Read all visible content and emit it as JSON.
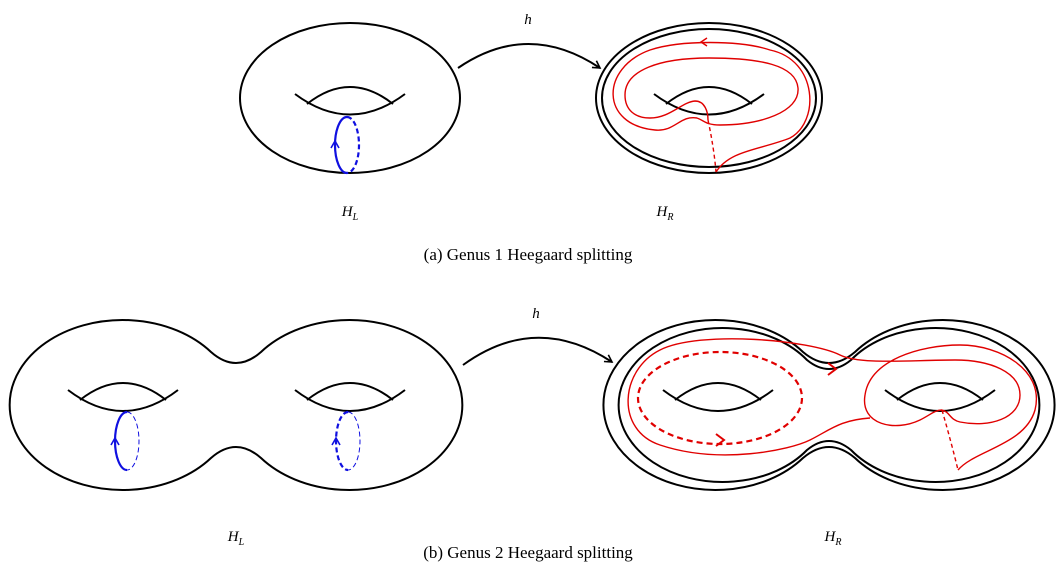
{
  "panels": [
    {
      "map_label": "h",
      "left_label": {
        "base": "H",
        "sub": "L"
      },
      "right_label": {
        "base": "H",
        "sub": "R"
      },
      "caption": "(a) Genus 1 Heegaard splitting"
    },
    {
      "map_label": "h",
      "left_label": {
        "base": "H",
        "sub": "L"
      },
      "right_label": {
        "base": "H",
        "sub": "R"
      },
      "caption": "(b) Genus 2 Heegaard splitting"
    }
  ]
}
